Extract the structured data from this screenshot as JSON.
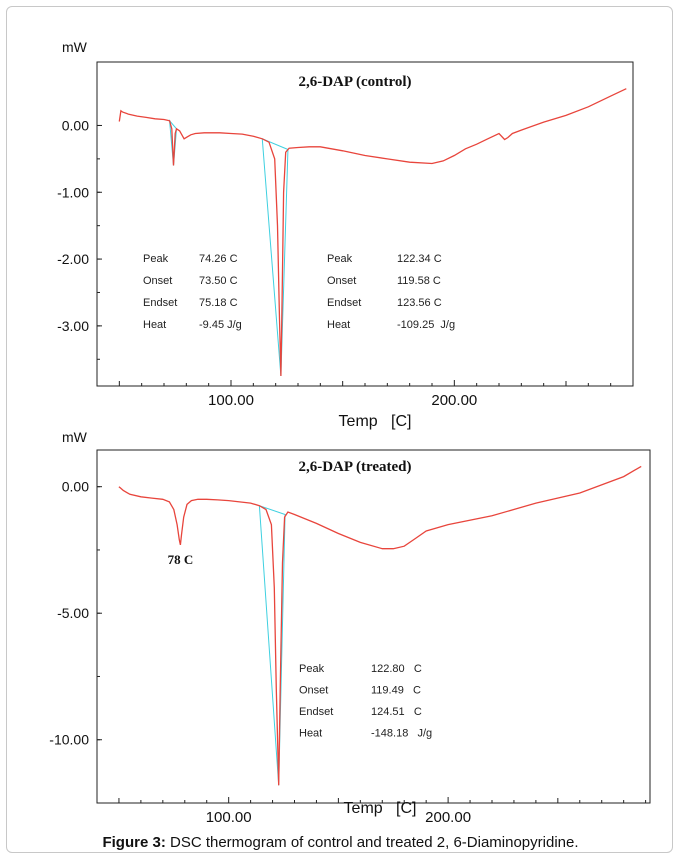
{
  "caption": {
    "label": "Figure 3:",
    "text": " DSC thermogram of control and treated 2, 6-Diaminopyridine."
  },
  "colors": {
    "curve": "#e8453c",
    "baseline": "#3fd0e0",
    "frame": "#222222"
  },
  "chart_data": [
    {
      "type": "line",
      "title": "2,6-DAP (control)",
      "ylabel": "mW",
      "xlabel": "Temp   [C]",
      "xlim": [
        40,
        280
      ],
      "ylim": [
        -3.9,
        0.95
      ],
      "xticks": [
        100,
        200
      ],
      "xtick_labels": [
        "100.00",
        "200.00"
      ],
      "yticks": [
        0,
        -1,
        -2,
        -3
      ],
      "ytick_labels": [
        "0.00",
        "-1.00",
        "-2.00",
        "-3.00"
      ],
      "series": [
        {
          "x": [
            50,
            50.7,
            51.5,
            54,
            58,
            62,
            66,
            70,
            72.5,
            73.5,
            74.26,
            75.0,
            75.6,
            77,
            79,
            80.5,
            82,
            84,
            88,
            95,
            100,
            105,
            110,
            114,
            117,
            119.58,
            120.8,
            121.7,
            122.34,
            122.9,
            123.56,
            124.5,
            126,
            130,
            135,
            140,
            150,
            160,
            170,
            180,
            190,
            195,
            200,
            205,
            210,
            215,
            220,
            222.5,
            224,
            226,
            230,
            240,
            250,
            260,
            270,
            277
          ],
          "y": [
            0.06,
            0.22,
            0.2,
            0.17,
            0.14,
            0.12,
            0.1,
            0.09,
            0.07,
            -0.05,
            -0.6,
            -0.12,
            -0.05,
            -0.08,
            -0.2,
            -0.17,
            -0.14,
            -0.12,
            -0.11,
            -0.11,
            -0.12,
            -0.13,
            -0.16,
            -0.2,
            -0.25,
            -0.5,
            -1.5,
            -2.9,
            -3.75,
            -2.6,
            -1.0,
            -0.4,
            -0.34,
            -0.33,
            -0.32,
            -0.32,
            -0.38,
            -0.45,
            -0.5,
            -0.55,
            -0.57,
            -0.53,
            -0.45,
            -0.35,
            -0.28,
            -0.2,
            -0.12,
            -0.21,
            -0.18,
            -0.12,
            -0.07,
            0.05,
            0.15,
            0.28,
            0.44,
            0.55
          ]
        }
      ],
      "annotations": [
        {
          "rows": [
            {
              "label": "Peak",
              "value": "74.26 C"
            },
            {
              "label": "Onset",
              "value": "73.50 C"
            },
            {
              "label": "Endset",
              "value": "75.18 C"
            },
            {
              "label": "Heat",
              "value": "-9.45 J/g"
            }
          ]
        },
        {
          "rows": [
            {
              "label": "Peak",
              "value": "122.34 C"
            },
            {
              "label": "Onset",
              "value": "119.58 C"
            },
            {
              "label": "Endset",
              "value": "123.56 C"
            },
            {
              "label": "Heat",
              "value": "-109.25  J/g"
            }
          ]
        }
      ],
      "grid": false
    },
    {
      "type": "line",
      "title": "2,6-DAP (treated)",
      "ylabel": "mW",
      "xlabel": "Temp   [C]",
      "xlim": [
        40,
        292
      ],
      "ylim": [
        -12.5,
        1.45
      ],
      "xticks": [
        100,
        200
      ],
      "xtick_labels": [
        "100.00",
        "200.00"
      ],
      "yticks": [
        0,
        -5,
        -10
      ],
      "ytick_labels": [
        "0.00",
        "-5.00",
        "-10.00"
      ],
      "series": [
        {
          "x": [
            50,
            50.7,
            52,
            55,
            60,
            65,
            70,
            73,
            75,
            76.5,
            77.5,
            78,
            78.5,
            79.5,
            81,
            83,
            86,
            90,
            95,
            100,
            105,
            110,
            114,
            117,
            119.49,
            120.8,
            121.7,
            122.8,
            123.5,
            124.51,
            125.5,
            127,
            130,
            140,
            150,
            160,
            170,
            175,
            180,
            185,
            190,
            200,
            220,
            240,
            260,
            280,
            288
          ],
          "y": [
            0.0,
            -0.05,
            -0.15,
            -0.3,
            -0.4,
            -0.45,
            -0.5,
            -0.6,
            -0.9,
            -1.5,
            -2.1,
            -2.3,
            -1.9,
            -1.2,
            -0.7,
            -0.55,
            -0.5,
            -0.5,
            -0.52,
            -0.55,
            -0.6,
            -0.65,
            -0.75,
            -0.9,
            -1.5,
            -4.0,
            -8.0,
            -11.8,
            -8.0,
            -3.0,
            -1.2,
            -1.0,
            -1.1,
            -1.45,
            -1.85,
            -2.2,
            -2.45,
            -2.45,
            -2.35,
            -2.05,
            -1.75,
            -1.5,
            -1.15,
            -0.65,
            -0.25,
            0.4,
            0.8
          ]
        }
      ],
      "peak_labels": [
        {
          "x": 78,
          "text": "78 C"
        }
      ],
      "annotations": [
        {
          "rows": [
            {
              "label": "Peak",
              "value": "122.80   C"
            },
            {
              "label": "Onset",
              "value": "119.49   C"
            },
            {
              "label": "Endset",
              "value": "124.51   C"
            },
            {
              "label": "Heat",
              "value": "-148.18   J/g"
            }
          ]
        }
      ],
      "grid": false
    }
  ]
}
